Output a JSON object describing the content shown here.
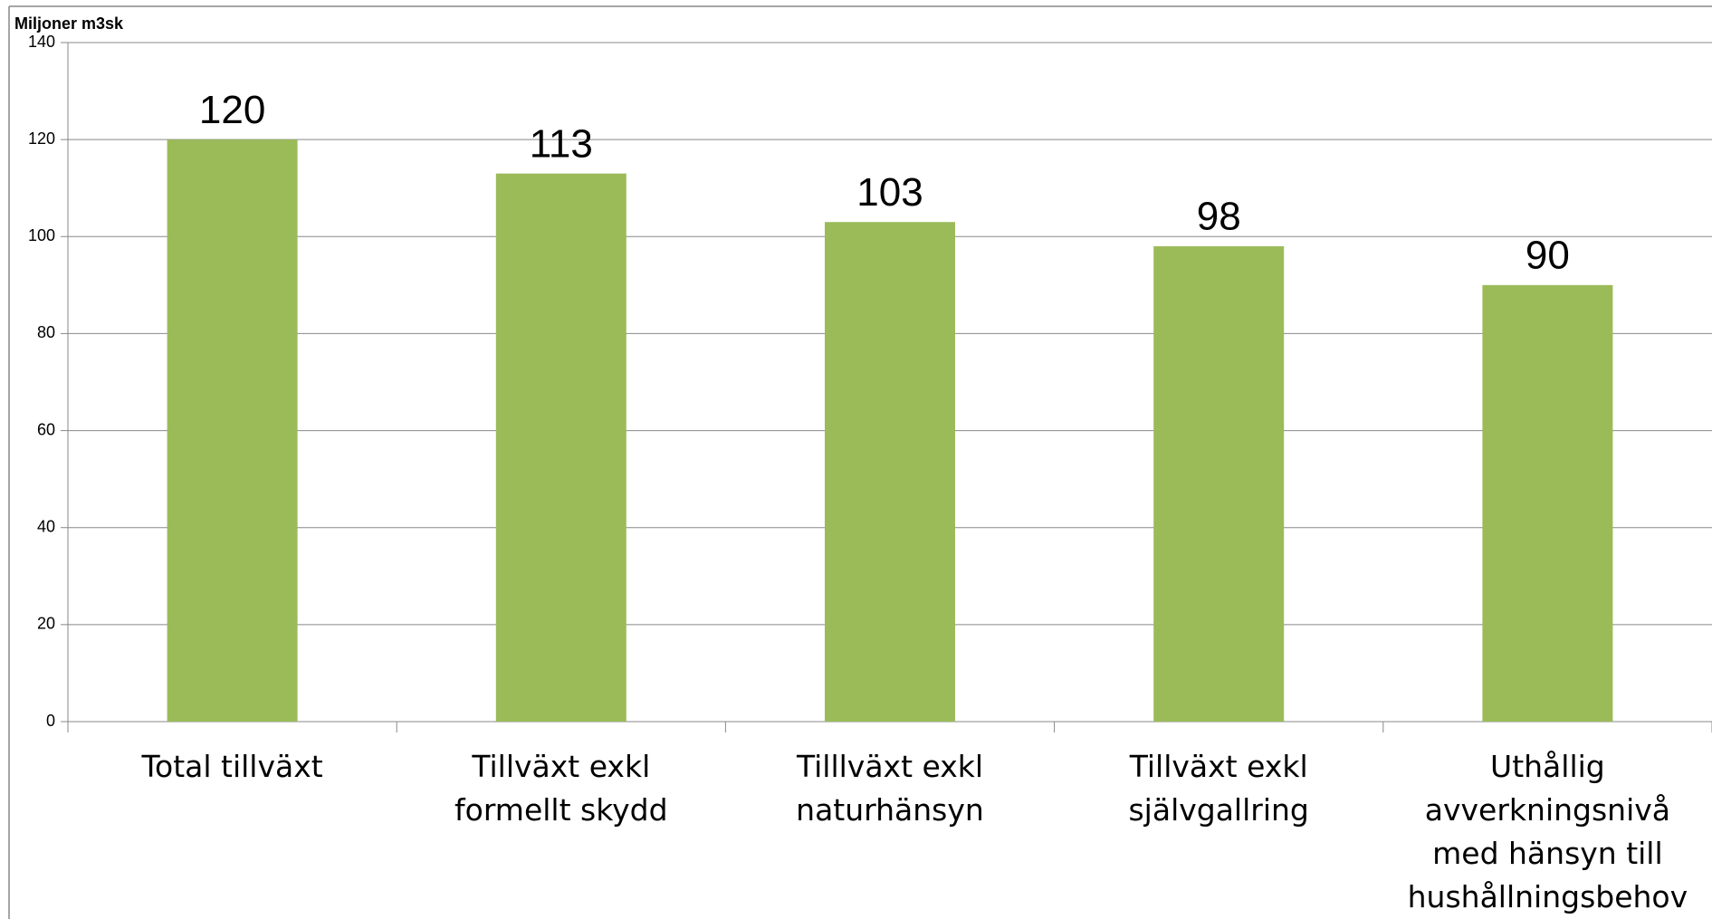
{
  "chart_data": {
    "type": "bar",
    "y_axis_label": "Miljoner m3sk",
    "categories": [
      "Total tillväxt",
      "Tillväxt exkl formellt skydd",
      "Tilllväxt exkl naturhänsyn",
      "Tillväxt exkl självgallring",
      "Uthållig avverkningsnivå med hänsyn till hushållningsbehov"
    ],
    "values": [
      120,
      113,
      103,
      98,
      90
    ],
    "color": "#9bbb59",
    "ylim": [
      0,
      140
    ],
    "yticks": [
      0,
      20,
      40,
      60,
      80,
      100,
      120,
      140
    ],
    "grid": true
  }
}
